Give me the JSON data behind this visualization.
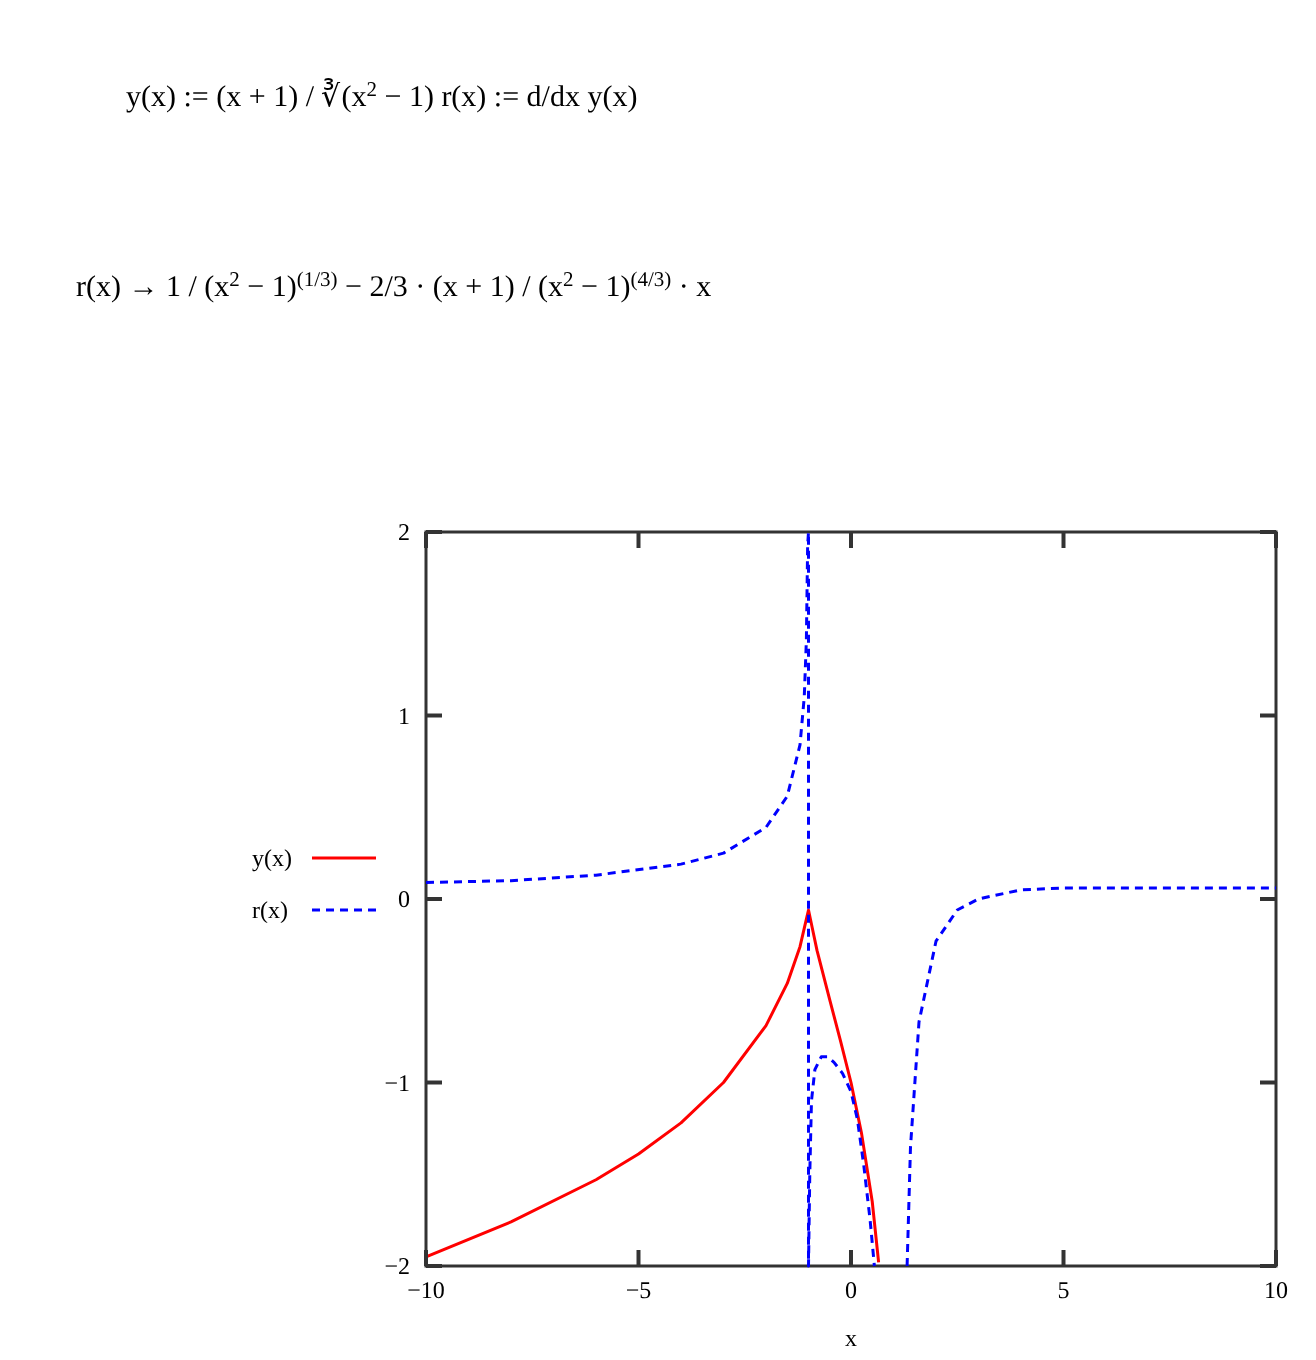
{
  "chart_data": {
    "type": "line",
    "xlabel": "x",
    "annotations": [
      "y(x) := (x + 1) / ∛(x$^{2}$ − 1)      r(x) := d/dx y(x)",
      "r(x)  →  1 / (x$^{2}$ − 1)$^{(1/3)}$  −  2/3 · (x + 1) / (x$^{2}$ − 1)$^{(4/3)}$ · x"
    ],
    "xlim": [
      -10,
      10
    ],
    "ylim": [
      -2,
      2
    ],
    "xticks": [
      -10,
      -5,
      0,
      5,
      10
    ],
    "yticks": [
      -2,
      -1,
      0,
      1,
      2
    ],
    "grid": false,
    "legend": "left",
    "series": [
      {
        "name": "y(x)",
        "color": "#ff0000",
        "line_style": "solid",
        "x": [
          -10,
          -8,
          -6,
          -5,
          -4,
          -3,
          -2,
          -1.5,
          -1.2,
          -1.05,
          -1,
          -0.9,
          -0.8,
          -0.5,
          -0.25,
          0,
          0.25,
          0.5,
          0.65
        ],
        "values": [
          -1.95,
          -1.76,
          -1.53,
          -1.39,
          -1.22,
          -1,
          -0.69,
          -0.46,
          -0.26,
          -0.11,
          -0.06,
          -0.17,
          -0.28,
          -0.55,
          -0.77,
          -1,
          -1.28,
          -1.65,
          -1.98
        ]
      },
      {
        "name": "r(x)",
        "color": "#0000ff",
        "line_style": "dashed",
        "x": [
          -10,
          -8,
          -6,
          -4,
          -3,
          -2,
          -1.5,
          -1.2,
          -1.1,
          -1.05,
          -1.02,
          -1,
          -1,
          -0.97,
          -0.93,
          -0.85,
          -0.7,
          -0.55,
          -0.4,
          -0.2,
          0,
          0.15,
          0.3,
          0.45,
          0.55,
          1,
          1.32,
          1.4,
          1.6,
          2,
          2.5,
          3,
          4,
          5,
          7,
          10
        ],
        "values": [
          0.09,
          0.1,
          0.13,
          0.19,
          0.25,
          0.39,
          0.56,
          0.84,
          1.1,
          1.41,
          1.93,
          2,
          -2,
          -1.5,
          -1.1,
          -0.93,
          -0.86,
          -0.86,
          -0.89,
          -0.95,
          -1.05,
          -1.2,
          -1.45,
          -1.75,
          -2,
          null,
          -2,
          -1.35,
          -0.67,
          -0.23,
          -0.06,
          0,
          0.05,
          0.06,
          0.06,
          0.06
        ]
      }
    ]
  }
}
